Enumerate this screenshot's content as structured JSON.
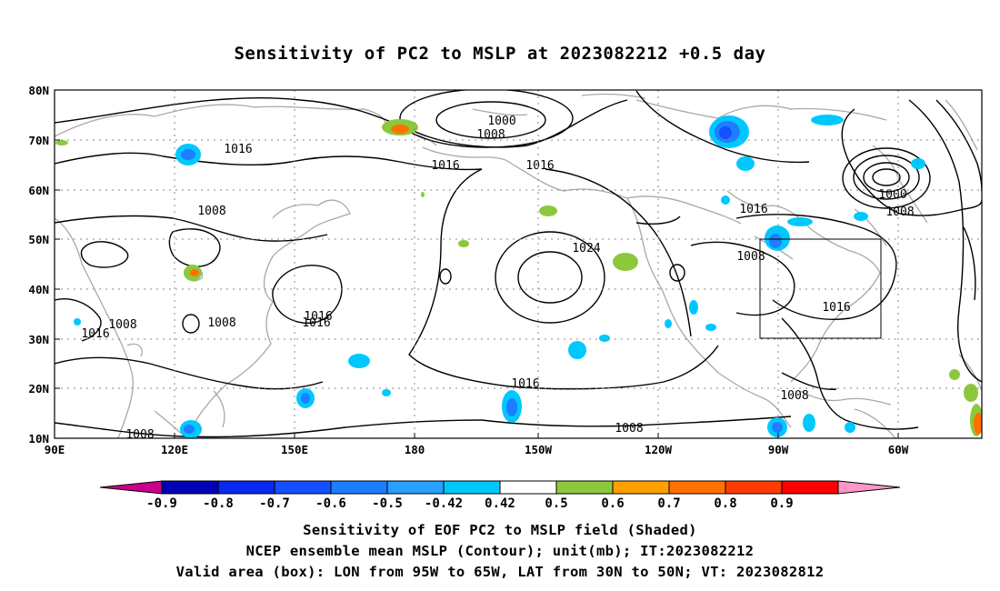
{
  "title": "Sensitivity of PC2 to MSLP at 2023082212 +0.5 day",
  "map": {
    "lon_labels": [
      "90E",
      "120E",
      "150E",
      "180",
      "150W",
      "120W",
      "90W",
      "60W"
    ],
    "lat_labels": [
      "80N",
      "70N",
      "60N",
      "50N",
      "40N",
      "30N",
      "20N",
      "10N"
    ],
    "extent": {
      "lon_min": 90,
      "lon_max": 322,
      "lat_min": 10,
      "lat_max": 80
    },
    "contour_labels": [
      "1000",
      "1008",
      "1016",
      "1024",
      "1016",
      "1008",
      "1008",
      "1016",
      "1016",
      "1016",
      "1016",
      "1008",
      "1008",
      "1016",
      "1000",
      "1008",
      "1008",
      "1016",
      "1016",
      "1008",
      "1008",
      "1016",
      "1016"
    ],
    "valid_box": {
      "lon": [
        265,
        295
      ],
      "lat": [
        30,
        50
      ]
    },
    "colors": {
      "coast": "#a8a8a8",
      "contour": "#000000",
      "grid": "#888888"
    }
  },
  "colorbar": {
    "labels": [
      "-0.9",
      "-0.8",
      "-0.7",
      "-0.6",
      "-0.5",
      "-0.42",
      "0.42",
      "0.5",
      "0.6",
      "0.7",
      "0.8",
      "0.9"
    ],
    "colors": [
      "#c8008c",
      "#0000b4",
      "#0a28f0",
      "#1450ff",
      "#1e7dff",
      "#28a0ff",
      "#00c8ff",
      "#ffffff",
      "#8cc83c",
      "#ffa000",
      "#ff7000",
      "#ff3c00",
      "#ff0000",
      "#ff96c8"
    ]
  },
  "captions": [
    "Sensitivity of EOF PC2 to MSLP field (Shaded)",
    "NCEP ensemble mean MSLP (Contour); unit(mb); IT:2023082212",
    "Valid area (box): LON from 95W to 65W, LAT from 30N to 50N; VT: 2023082812"
  ]
}
